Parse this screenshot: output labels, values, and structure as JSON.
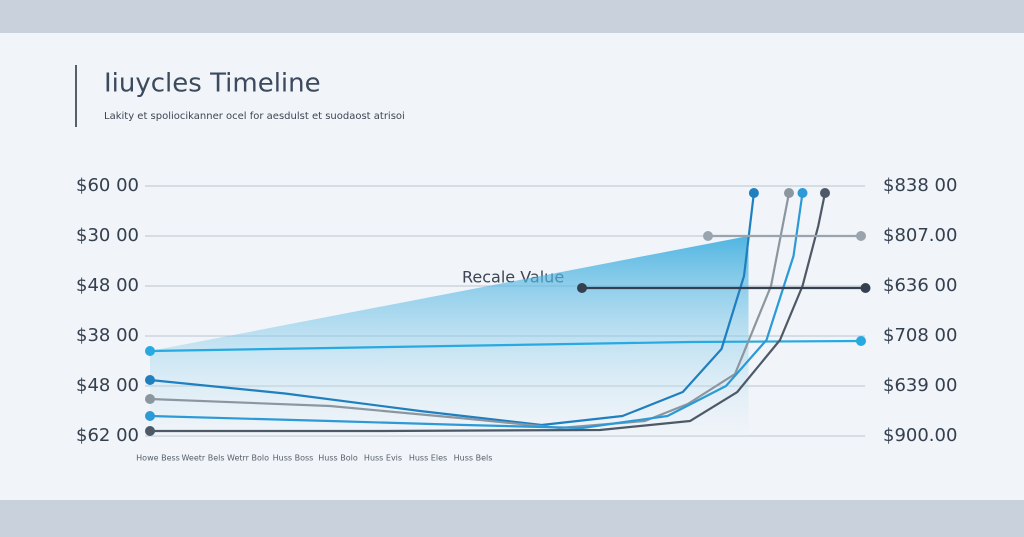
{
  "chart_data": {
    "type": "line",
    "title": "Iiuycles Timeline",
    "subtitle": "Lakity et spoliocikanner ocel for aesdulst et suodaost atrisoi",
    "annotation": "Recale Value",
    "grid": true,
    "xlim": [
      0,
      16
    ],
    "xticks": [
      {
        "value": 0,
        "label": "Howe Bess"
      },
      {
        "value": 1,
        "label": "Weetr Bels"
      },
      {
        "value": 2,
        "label": "Wetrr Bolo"
      },
      {
        "value": 3,
        "label": "Huss Boss"
      },
      {
        "value": 4,
        "label": "Huss Bolo"
      },
      {
        "value": 5,
        "label": "Huss Evis"
      },
      {
        "value": 6,
        "label": "Huss Eles"
      },
      {
        "value": 7,
        "label": "Huss Bels"
      }
    ],
    "ylim": [
      0,
      5
    ],
    "yticks": [
      {
        "value": 5,
        "label": "$60 00"
      },
      {
        "value": 4,
        "label": "$30 00"
      },
      {
        "value": 3,
        "label": "$48 00"
      },
      {
        "value": 2,
        "label": "$38 00"
      },
      {
        "value": 1,
        "label": "$48 00"
      },
      {
        "value": 0,
        "label": "$62 00"
      }
    ],
    "y2lim": [
      0,
      5
    ],
    "y2ticks": [
      {
        "value": 5,
        "label": "$838 00"
      },
      {
        "value": 4,
        "label": "$807.00"
      },
      {
        "value": 3,
        "label": "$636 00"
      },
      {
        "value": 2,
        "label": "$708 00"
      },
      {
        "value": 1,
        "label": "$639 00"
      },
      {
        "value": 0,
        "label": "$900.00"
      }
    ],
    "series": [
      {
        "color": "#2aa6dc",
        "area": true,
        "x": [
          0,
          13.3
        ],
        "values": [
          1.7,
          4
        ]
      },
      {
        "color": "#27a9e1",
        "x": [
          0,
          4,
          8,
          12,
          15.8
        ],
        "values": [
          1.7,
          1.76,
          1.82,
          1.88,
          1.9
        ]
      },
      {
        "color": "#1f7fbf",
        "x": [
          0,
          3,
          6,
          8.7,
          10.5,
          11.84,
          12.7,
          13.2,
          13.42
        ],
        "values": [
          1.12,
          0.85,
          0.5,
          0.22,
          0.4,
          0.88,
          1.74,
          3.2,
          4.86
        ]
      },
      {
        "color": "#8c969f",
        "x": [
          0,
          4,
          7,
          9.1,
          11,
          11.95,
          13.0,
          13.8,
          14.2
        ],
        "values": [
          0.74,
          0.6,
          0.35,
          0.16,
          0.3,
          0.64,
          1.24,
          3.0,
          4.86
        ]
      },
      {
        "color": "#2b9ad6",
        "x": [
          0,
          4,
          7,
          9.6,
          11.5,
          12.8,
          13.7,
          14.3,
          14.5
        ],
        "values": [
          0.4,
          0.3,
          0.22,
          0.16,
          0.4,
          1.0,
          1.92,
          3.6,
          4.86
        ]
      },
      {
        "color": "#4d5966",
        "x": [
          0,
          5,
          10,
          12,
          13.05,
          14.0,
          14.5,
          14.85,
          15.0
        ],
        "values": [
          0.1,
          0.1,
          0.12,
          0.3,
          0.88,
          1.92,
          3.0,
          4.2,
          4.86
        ]
      },
      {
        "color": "#9aa4ae",
        "x": [
          12.4,
          15.8
        ],
        "values": [
          4,
          4
        ]
      },
      {
        "color": "#34404f",
        "x": [
          9.6,
          15.9
        ],
        "values": [
          2.96,
          2.96
        ]
      }
    ]
  }
}
